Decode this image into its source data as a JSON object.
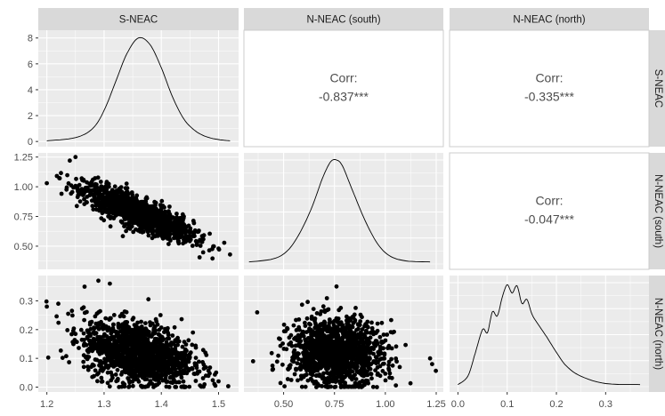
{
  "chart_data": {
    "type": "scatter",
    "variables": [
      "S-NEAC",
      "N-NEAC (south)",
      "N-NEAC (north)"
    ],
    "axes": {
      "S-NEAC": {
        "range": [
          1.185,
          1.535
        ],
        "ticks": [
          1.2,
          1.3,
          1.4,
          1.5
        ],
        "tick_labels": [
          "1.2",
          "1.3",
          "1.4",
          "1.5"
        ]
      },
      "N-NEAC (south)": {
        "range": [
          0.305,
          1.285
        ],
        "ticks": [
          0.5,
          0.75,
          1.0,
          1.25
        ],
        "tick_labels": [
          "0.50",
          "0.75",
          "1.00",
          "1.25"
        ]
      },
      "N-NEAC (north)": {
        "range": [
          -0.017,
          0.388
        ],
        "ticks": [
          0.0,
          0.1,
          0.2,
          0.3
        ],
        "tick_labels": [
          "0.0",
          "0.1",
          "0.2",
          "0.3"
        ]
      }
    },
    "density_y_axis": {
      "range": [
        -0.4,
        8.6
      ],
      "ticks": [
        0,
        2,
        4,
        6,
        8
      ],
      "tick_labels": [
        "0",
        "2",
        "4",
        "6",
        "8"
      ]
    },
    "diagonal_densities": [
      {
        "variable": "S-NEAC",
        "x": [
          1.2,
          1.25,
          1.28,
          1.3,
          1.32,
          1.34,
          1.36,
          1.38,
          1.4,
          1.42,
          1.44,
          1.46,
          1.48,
          1.5,
          1.52
        ],
        "y": [
          0.05,
          0.3,
          1.0,
          2.4,
          4.6,
          6.8,
          8.0,
          7.5,
          5.7,
          3.4,
          1.7,
          0.8,
          0.35,
          0.15,
          0.05
        ]
      },
      {
        "variable": "N-NEAC (south)",
        "x": [
          0.33,
          0.45,
          0.52,
          0.58,
          0.64,
          0.69,
          0.73,
          0.76,
          0.79,
          0.84,
          0.9,
          0.96,
          1.02,
          1.1,
          1.22
        ],
        "y_rel": [
          0.02,
          0.05,
          0.13,
          0.3,
          0.55,
          0.82,
          0.98,
          1.0,
          0.94,
          0.7,
          0.42,
          0.2,
          0.08,
          0.03,
          0.02
        ]
      },
      {
        "variable": "N-NEAC (north)",
        "x": [
          0.0,
          0.02,
          0.035,
          0.05,
          0.06,
          0.07,
          0.08,
          0.09,
          0.1,
          0.11,
          0.12,
          0.13,
          0.14,
          0.15,
          0.16,
          0.18,
          0.2,
          0.22,
          0.25,
          0.3,
          0.37
        ],
        "y_rel": [
          0.02,
          0.1,
          0.32,
          0.55,
          0.52,
          0.72,
          0.68,
          0.86,
          0.98,
          0.9,
          0.97,
          0.8,
          0.84,
          0.7,
          0.62,
          0.48,
          0.33,
          0.2,
          0.1,
          0.03,
          0.02
        ]
      }
    ],
    "correlations": [
      {
        "row": "S-NEAC",
        "col": "N-NEAC (south)",
        "label": "Corr:",
        "value": "-0.837***"
      },
      {
        "row": "S-NEAC",
        "col": "N-NEAC (north)",
        "label": "Corr:",
        "value": "-0.335***"
      },
      {
        "row": "N-NEAC (south)",
        "col": "N-NEAC (north)",
        "label": "Corr:",
        "value": "-0.047***"
      }
    ],
    "scatter_panels": [
      {
        "x": "S-NEAC",
        "y": "N-NEAC (south)",
        "center": [
          1.36,
          0.78
        ],
        "sd": [
          0.05,
          0.12
        ],
        "rho": -0.837,
        "outliers": [
          [
            1.2,
            1.03
          ],
          [
            1.24,
            1.22
          ],
          [
            1.25,
            1.25
          ],
          [
            1.52,
            0.43
          ],
          [
            1.5,
            0.48
          ]
        ]
      },
      {
        "x": "S-NEAC",
        "y": "N-NEAC (north)",
        "center": [
          1.36,
          0.12
        ],
        "sd": [
          0.05,
          0.06
        ],
        "rho": -0.335,
        "outliers": [
          [
            1.2,
            0.28
          ],
          [
            1.22,
            0.29
          ],
          [
            1.29,
            0.37
          ],
          [
            1.31,
            0.36
          ],
          [
            1.5,
            0.02
          ]
        ]
      },
      {
        "x": "N-NEAC (south)",
        "y": "N-NEAC (north)",
        "center": [
          0.76,
          0.12
        ],
        "sd": [
          0.12,
          0.06
        ],
        "rho": -0.047,
        "outliers": [
          [
            0.37,
            0.26
          ],
          [
            0.35,
            0.09
          ],
          [
            1.23,
            0.08
          ],
          [
            0.76,
            0.35
          ],
          [
            1.22,
            0.1
          ]
        ]
      }
    ],
    "grid": true
  },
  "colors": {
    "panel_bg": "#ebebeb",
    "strip_bg": "#d9d9d9",
    "grid": "#ffffff",
    "text": "#4d4d4d",
    "ink": "#000000",
    "tick_text": "#4d4d4d"
  }
}
